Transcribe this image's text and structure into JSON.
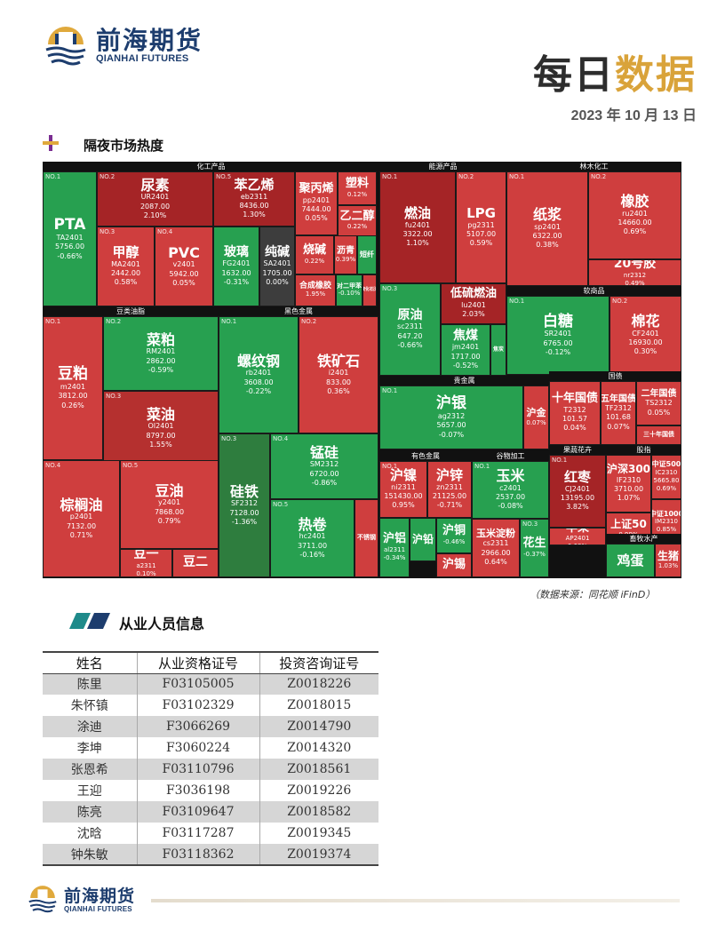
{
  "header": {
    "logo_cn": "前海期货",
    "logo_en": "QIANHAI FUTURES",
    "title_part1": "每日",
    "title_part2": "数据",
    "date": "2023 年 10 月 13 日"
  },
  "section1": {
    "title": "隔夜市场热度"
  },
  "treemap": {
    "groups": {
      "chem": "化工产品",
      "energy": "能源产品",
      "forest": "林木化工",
      "soft": "软商品",
      "oil": "豆类油脂",
      "black": "黑色金属",
      "precious": "贵金属",
      "bond": "国债",
      "fruit": "果蔬花卉",
      "index": "股指",
      "nonferrous": "有色金属",
      "grain": "谷物加工",
      "livestock": "畜牧水产"
    },
    "tiles": {
      "pta": {
        "no": "NO.1",
        "name": "PTA",
        "code": "TA2401",
        "price": "5756.00",
        "chg": "-0.66%"
      },
      "urea": {
        "no": "NO.2",
        "name": "尿素",
        "code": "UR2401",
        "price": "2087.00",
        "chg": "2.10%"
      },
      "methanol": {
        "no": "NO.3",
        "name": "甲醇",
        "code": "MA2401",
        "price": "2442.00",
        "chg": "0.58%"
      },
      "pvc": {
        "no": "NO.4",
        "name": "PVC",
        "code": "v2401",
        "price": "5942.00",
        "chg": "0.05%"
      },
      "styrene": {
        "no": "NO.5",
        "name": "苯乙烯",
        "code": "eb2311",
        "price": "8436.00",
        "chg": "1.30%"
      },
      "glass": {
        "name": "玻璃",
        "code": "FG2401",
        "price": "1632.00",
        "chg": "-0.31%"
      },
      "soda": {
        "name": "纯碱",
        "code": "SA2401",
        "price": "1705.00",
        "chg": "0.00%"
      },
      "pp": {
        "name": "聚丙烯",
        "code": "pp2401",
        "price": "7444.00",
        "chg": "0.05%"
      },
      "plastic": {
        "name": "塑料",
        "chg": "0.12%"
      },
      "eg": {
        "name": "乙二醇",
        "chg": "0.22%"
      },
      "caustic": {
        "name": "烧碱",
        "chg": "0.22%"
      },
      "bitumen": {
        "name": "沥青",
        "chg": "0.39%"
      },
      "shortfiber": {
        "name": "短纤"
      },
      "synrubber": {
        "name": "合成橡胶",
        "chg": "1.95%"
      },
      "paraxylene": {
        "name": "对二甲苯",
        "chg": "-0.10%"
      },
      "lpg_small": {
        "name": "液化石油"
      },
      "fueloil": {
        "no": "NO.1",
        "name": "燃油",
        "code": "fu2401",
        "price": "3322.00",
        "chg": "1.10%"
      },
      "lpg": {
        "no": "NO.2",
        "name": "LPG",
        "code": "pg2311",
        "price": "5107.00",
        "chg": "0.59%"
      },
      "crude": {
        "no": "NO.3",
        "name": "原油",
        "code": "sc2311",
        "price": "647.20",
        "chg": "-0.66%"
      },
      "lsfo": {
        "name": "低硫燃油",
        "code": "lu2401",
        "chg": "2.03%"
      },
      "coke": {
        "name": "焦煤",
        "code": "jm2401",
        "price": "1717.00",
        "chg": "-0.52%"
      },
      "coke2": {
        "name": "焦炭"
      },
      "pulp": {
        "no": "NO.1",
        "name": "纸浆",
        "code": "sp2401",
        "price": "6322.00",
        "chg": "0.38%"
      },
      "rubber": {
        "no": "NO.2",
        "name": "橡胶",
        "code": "ru2401",
        "price": "14660.00",
        "chg": "0.69%"
      },
      "nr": {
        "name": "20号胶",
        "code": "nr2312",
        "chg": "0.49%"
      },
      "sugar": {
        "no": "NO.1",
        "name": "白糖",
        "code": "SR2401",
        "price": "6765.00",
        "chg": "-0.12%"
      },
      "cotton": {
        "no": "NO.2",
        "name": "棉花",
        "code": "CF2401",
        "price": "16930.00",
        "chg": "0.30%"
      },
      "soybean": {
        "no": "NO.1",
        "name": "豆粕",
        "code": "m2401",
        "price": "3812.00",
        "chg": "0.26%"
      },
      "rapemeal": {
        "no": "NO.2",
        "name": "菜粕",
        "code": "RM2401",
        "price": "2862.00",
        "chg": "-0.59%"
      },
      "rapeoil": {
        "no": "NO.3",
        "name": "菜油",
        "code": "OI2401",
        "price": "8797.00",
        "chg": "1.55%"
      },
      "palm": {
        "no": "NO.4",
        "name": "棕榈油",
        "code": "p2401",
        "price": "7132.00",
        "chg": "0.71%"
      },
      "soyoil": {
        "no": "NO.5",
        "name": "豆油",
        "code": "y2401",
        "price": "7868.00",
        "chg": "0.79%"
      },
      "bean1": {
        "name": "豆一",
        "code": "a2311",
        "chg": "0.10%"
      },
      "bean2": {
        "name": "豆二"
      },
      "rebar": {
        "no": "NO.1",
        "name": "螺纹钢",
        "code": "rb2401",
        "price": "3608.00",
        "chg": "-0.22%"
      },
      "ironore": {
        "no": "NO.2",
        "name": "铁矿石",
        "code": "i2401",
        "price": "833.00",
        "chg": "0.36%"
      },
      "sife": {
        "no": "NO.3",
        "name": "硅铁",
        "code": "SF2312",
        "price": "7128.00",
        "chg": "-1.36%"
      },
      "simn": {
        "no": "NO.4",
        "name": "锰硅",
        "code": "SM2312",
        "price": "6720.00",
        "chg": "-0.86%"
      },
      "hotcoil": {
        "no": "NO.5",
        "name": "热卷",
        "code": "hc2401",
        "price": "3711.00",
        "chg": "-0.16%"
      },
      "stainless": {
        "name": "不锈钢"
      },
      "silver": {
        "no": "NO.1",
        "name": "沪银",
        "code": "ag2312",
        "price": "5657.00",
        "chg": "-0.07%"
      },
      "gold": {
        "no": "NO.2",
        "name": "沪金",
        "chg": "0.07%"
      },
      "t10": {
        "name": "十年国债",
        "code": "T2312",
        "price": "101.57",
        "chg": "0.04%"
      },
      "t5": {
        "name": "五年国债",
        "code": "TF2312",
        "price": "101.68",
        "chg": "0.07%"
      },
      "t2": {
        "name": "二年国债",
        "code": "TS2312",
        "chg": "0.05%"
      },
      "t30": {
        "name": "三十年国债"
      },
      "nickel": {
        "no": "NO.1",
        "name": "沪镍",
        "code": "ni2311",
        "price": "151430.00",
        "chg": "0.95%"
      },
      "zinc": {
        "name": "沪锌",
        "code": "zn2311",
        "price": "21125.00",
        "chg": "-0.71%"
      },
      "aluminum": {
        "name": "沪铝",
        "code": "al2311",
        "chg": "-0.34%"
      },
      "lead": {
        "no": "NO.4",
        "name": "沪铅"
      },
      "copper": {
        "name": "沪铜",
        "chg": "-0.46%"
      },
      "tin": {
        "name": "沪锡"
      },
      "corn": {
        "no": "NO.1",
        "name": "玉米",
        "code": "c2401",
        "price": "2537.00",
        "chg": "-0.08%"
      },
      "cornstarch": {
        "name": "玉米淀粉",
        "code": "cs2311",
        "price": "2966.00",
        "chg": "0.64%"
      },
      "peanut": {
        "no": "NO.3",
        "name": "花生",
        "chg": "-0.37%"
      },
      "jujube": {
        "no": "NO.1",
        "name": "红枣",
        "code": "CJ2401",
        "price": "13195.00",
        "chg": "3.82%"
      },
      "apple": {
        "name": "苹果",
        "code": "AP2401",
        "chg": "0.68%"
      },
      "ifind300": {
        "name": "沪深300",
        "code": "IF2310",
        "price": "3710.00",
        "chg": "1.07%"
      },
      "csi500": {
        "name": "中证500",
        "code": "IC2310",
        "price": "5665.80",
        "chg": "0.69%"
      },
      "sse50": {
        "name": "上证50",
        "chg": "0.99%"
      },
      "csi1000": {
        "name": "中证1000",
        "code": "IM2310",
        "chg": "0.85%"
      },
      "egg": {
        "name": "鸡蛋"
      },
      "hog": {
        "name": "生猪",
        "chg": "1.03%"
      }
    }
  },
  "source_note": "（数据来源：同花顺 iFinD）",
  "section2": {
    "title": "从业人员信息"
  },
  "staff": {
    "headers": [
      "姓名",
      "从业资格证号",
      "投资咨询证号"
    ],
    "rows": [
      [
        "陈里",
        "F03105005",
        "Z0018226"
      ],
      [
        "朱怀镇",
        "F03102329",
        "Z0018015"
      ],
      [
        "涂迪",
        "F3066269",
        "Z0014790"
      ],
      [
        "李坤",
        "F3060224",
        "Z0014320"
      ],
      [
        "张恩希",
        "F03110796",
        "Z0018561"
      ],
      [
        "王迎",
        "F3036198",
        "Z0019226"
      ],
      [
        "陈亮",
        "F03109647",
        "Z0018582"
      ],
      [
        "沈晗",
        "F03117287",
        "Z0019345"
      ],
      [
        "钟朱敏",
        "F03118362",
        "Z0019374"
      ]
    ]
  },
  "colors": {
    "brand_navy": "#1d3d6e",
    "brand_gold": "#d9a33a",
    "up": "#cf3e3e",
    "down": "#27a050"
  }
}
